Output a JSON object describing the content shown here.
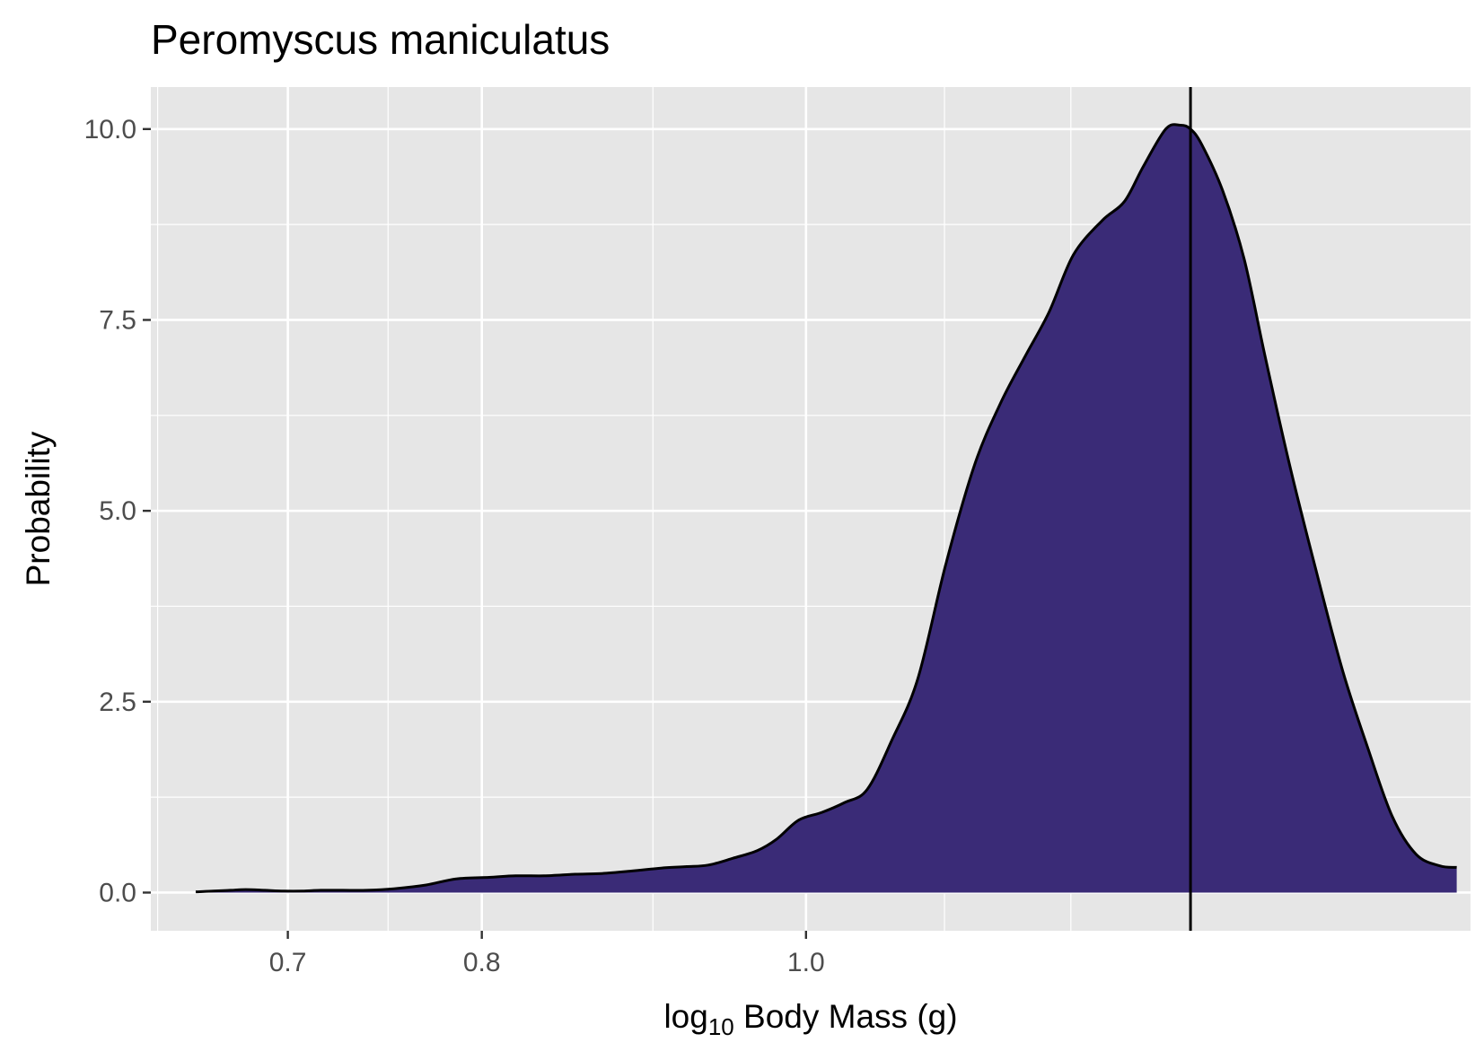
{
  "chart_data": {
    "type": "area",
    "title": "Peromyscus maniculatus",
    "xlabel_base": "log",
    "xlabel_subscript": "10",
    "xlabel_rest": " Body Mass ",
    "xlabel_unit": "(g)",
    "ylabel": "Probability",
    "x_scale": "log10",
    "x_ticks": [
      0.7,
      0.8,
      1.0
    ],
    "x_tick_labels": [
      "0.7",
      "0.8",
      "1.0"
    ],
    "x_minor_ticks": [
      0.64,
      0.75,
      0.9,
      1.1,
      1.2
    ],
    "y_ticks": [
      0,
      2.5,
      5,
      7.5,
      10
    ],
    "y_tick_labels": [
      "0.0",
      "2.5",
      "5.0",
      "7.5",
      "10.0"
    ],
    "xlim": [
      0.637,
      1.58
    ],
    "ylim": [
      -0.5,
      10.55
    ],
    "grid": true,
    "fill_color": "#3a2b77",
    "line_color": "#000000",
    "panel_color": "#e6e6e6",
    "vline_x": 1.303,
    "x": [
      0.657,
      0.665,
      0.673,
      0.68,
      0.689,
      0.698,
      0.707,
      0.716,
      0.727,
      0.739,
      0.753,
      0.77,
      0.786,
      0.804,
      0.819,
      0.835,
      0.853,
      0.869,
      0.886,
      0.905,
      0.921,
      0.935,
      0.951,
      0.967,
      0.98,
      0.995,
      1.011,
      1.027,
      1.043,
      1.061,
      1.08,
      1.101,
      1.123,
      1.143,
      1.162,
      1.182,
      1.202,
      1.226,
      1.245,
      1.261,
      1.281,
      1.294,
      1.303,
      1.313,
      1.332,
      1.352,
      1.372,
      1.395,
      1.421,
      1.447,
      1.472,
      1.497,
      1.522,
      1.547,
      1.565
    ],
    "y": [
      0.01,
      0.02,
      0.03,
      0.04,
      0.03,
      0.02,
      0.02,
      0.03,
      0.03,
      0.03,
      0.05,
      0.1,
      0.18,
      0.2,
      0.22,
      0.22,
      0.24,
      0.25,
      0.28,
      0.32,
      0.34,
      0.36,
      0.45,
      0.55,
      0.7,
      0.95,
      1.05,
      1.18,
      1.35,
      2.0,
      2.8,
      4.3,
      5.6,
      6.4,
      7.0,
      7.6,
      8.35,
      8.8,
      9.05,
      9.5,
      10.0,
      10.05,
      10.0,
      9.8,
      9.2,
      8.3,
      7.0,
      5.6,
      4.2,
      2.9,
      1.9,
      1.0,
      0.5,
      0.35,
      0.33
    ]
  }
}
